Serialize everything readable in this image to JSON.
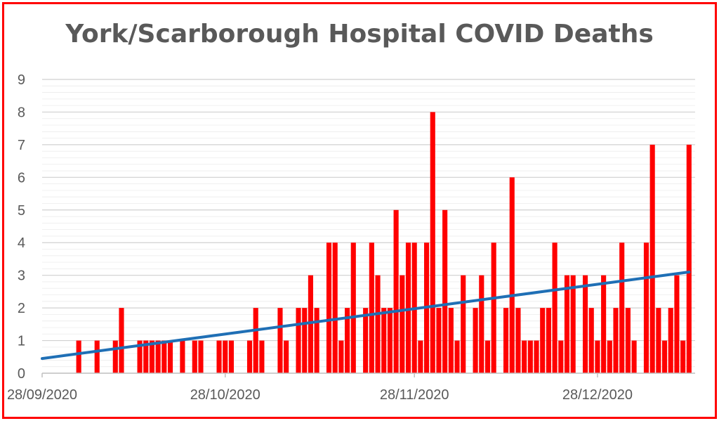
{
  "chart_data": {
    "type": "bar",
    "title": "York/Scarborough Hospital COVID Deaths",
    "xlabel": "",
    "ylabel": "",
    "ylim": [
      0,
      9
    ],
    "yticks": [
      0,
      1,
      2,
      3,
      4,
      5,
      6,
      7,
      8,
      9
    ],
    "x_tick_labels": [
      "28/09/2020",
      "28/10/2020",
      "28/11/2020",
      "28/12/2020"
    ],
    "x_start": "2020-09-28",
    "x_end": "2021-01-13",
    "grid": true,
    "bar_color": "#ff0000",
    "trend_color": "#1f6fb5",
    "series": [
      {
        "type": "bar",
        "x": [
          "2020-10-04",
          "2020-10-07",
          "2020-10-10",
          "2020-10-11",
          "2020-10-14",
          "2020-10-15",
          "2020-10-16",
          "2020-10-17",
          "2020-10-18",
          "2020-10-19",
          "2020-10-21",
          "2020-10-23",
          "2020-10-24",
          "2020-10-27",
          "2020-10-28",
          "2020-10-29",
          "2020-11-01",
          "2020-11-02",
          "2020-11-03",
          "2020-11-06",
          "2020-11-07",
          "2020-11-09",
          "2020-11-10",
          "2020-11-11",
          "2020-11-12",
          "2020-11-14",
          "2020-11-15",
          "2020-11-16",
          "2020-11-17",
          "2020-11-18",
          "2020-11-20",
          "2020-11-21",
          "2020-11-22",
          "2020-11-23",
          "2020-11-24",
          "2020-11-25",
          "2020-11-26",
          "2020-11-27",
          "2020-11-28",
          "2020-11-29",
          "2020-11-30",
          "2020-12-01",
          "2020-12-02",
          "2020-12-03",
          "2020-12-04",
          "2020-12-05",
          "2020-12-06",
          "2020-12-08",
          "2020-12-09",
          "2020-12-10",
          "2020-12-11",
          "2020-12-13",
          "2020-12-14",
          "2020-12-15",
          "2020-12-16",
          "2020-12-17",
          "2020-12-18",
          "2020-12-19",
          "2020-12-20",
          "2020-12-21",
          "2020-12-22",
          "2020-12-23",
          "2020-12-24",
          "2020-12-26",
          "2020-12-27",
          "2020-12-28",
          "2020-12-29",
          "2020-12-30",
          "2020-12-31",
          "2021-01-01",
          "2021-01-02",
          "2021-01-03",
          "2021-01-05",
          "2021-01-06",
          "2021-01-07",
          "2021-01-08",
          "2021-01-09",
          "2021-01-10",
          "2021-01-11"
        ],
        "values": [
          1,
          1,
          1,
          2,
          1,
          1,
          1,
          1,
          1,
          1,
          1,
          1,
          1,
          1,
          1,
          1,
          1,
          2,
          1,
          2,
          1,
          2,
          2,
          3,
          2,
          4,
          4,
          1,
          2,
          4,
          2,
          4,
          3,
          2,
          2,
          5,
          3,
          4,
          4,
          1,
          4,
          8,
          2,
          5,
          2,
          1,
          3,
          2,
          3,
          1,
          4,
          2,
          6,
          2,
          1,
          1,
          1,
          2,
          2,
          4,
          1,
          3,
          3,
          3,
          2,
          1,
          3,
          1,
          2,
          4,
          2,
          1,
          4,
          7,
          2,
          1,
          2,
          3,
          1
        ]
      },
      {
        "type": "line",
        "name": "trend",
        "x": [
          "2020-09-28",
          "2021-01-12"
        ],
        "values": [
          0.45,
          3.1
        ]
      }
    ],
    "extra_final_bar": {
      "x": "2021-01-12",
      "value": 7
    }
  }
}
